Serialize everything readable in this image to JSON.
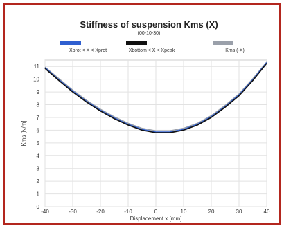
{
  "chart_data": {
    "type": "line",
    "title": "Stiffness of suspension Kms (X)",
    "subtitle": "(00-10-30)",
    "xlabel": "Displacement  x  [mm]",
    "ylabel": "Kms  [N/m]",
    "xlim": [
      -40,
      40
    ],
    "ylim": [
      0,
      11.5
    ],
    "xticks": [
      "-40",
      "-30",
      "-20",
      "-10",
      "0",
      "10",
      "20",
      "30",
      "40"
    ],
    "yticks": [
      "0",
      "1",
      "2",
      "3",
      "4",
      "5",
      "6",
      "7",
      "8",
      "9",
      "10",
      "11"
    ],
    "grid": true,
    "legend": [
      {
        "label": "Xprot < X < Xprot",
        "color": "#2f5fd0"
      },
      {
        "label": "Xbottom < X < Xpeak",
        "color": "#111111"
      },
      {
        "label": "Kms (-X)",
        "color": "#9aa0aa"
      }
    ],
    "series": [
      {
        "name": "Kms (-X)",
        "color": "#9aa0aa",
        "x": [
          -40,
          -35,
          -30,
          -25,
          -20,
          -15,
          -10,
          -5,
          0,
          5,
          10,
          15,
          20,
          25,
          30,
          35,
          40
        ],
        "y": [
          10.95,
          10.05,
          9.15,
          8.35,
          7.65,
          7.05,
          6.55,
          6.15,
          5.95,
          5.95,
          6.15,
          6.55,
          7.15,
          7.95,
          8.85,
          10.05,
          11.35
        ]
      },
      {
        "name": "Xprot < X < Xprot",
        "color": "#2f5fd0",
        "x": [
          -40,
          -35,
          -30,
          -25,
          -20,
          -15,
          -10,
          -5,
          0,
          5,
          10,
          15,
          20,
          25,
          30,
          35,
          40
        ],
        "y": [
          10.9,
          9.95,
          9.05,
          8.25,
          7.55,
          6.95,
          6.45,
          6.05,
          5.85,
          5.85,
          6.05,
          6.45,
          7.05,
          7.85,
          8.75,
          9.95,
          11.3
        ]
      },
      {
        "name": "Xbottom < X < Xpeak",
        "color": "#111111",
        "x": [
          -40,
          -35,
          -30,
          -25,
          -20,
          -15,
          -10,
          -5,
          0,
          5,
          10,
          15,
          20,
          25,
          30,
          35,
          40
        ],
        "y": [
          10.85,
          9.9,
          9.0,
          8.2,
          7.5,
          6.9,
          6.4,
          6.0,
          5.8,
          5.8,
          6.0,
          6.4,
          7.0,
          7.8,
          8.7,
          9.9,
          11.25
        ]
      }
    ]
  }
}
